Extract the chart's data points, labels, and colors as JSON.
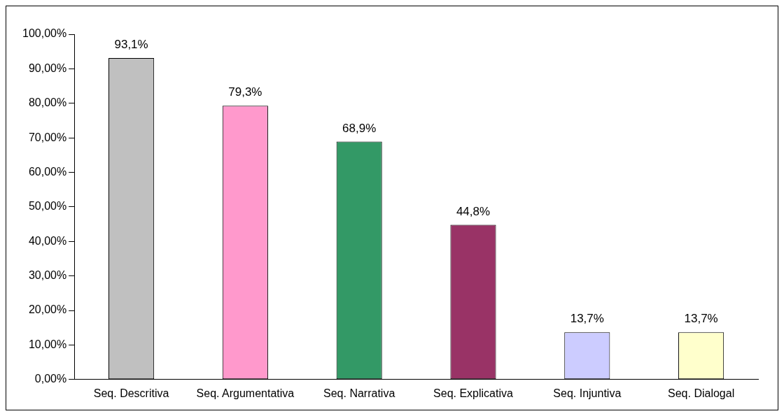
{
  "chart_data": {
    "type": "bar",
    "categories": [
      "Seq. Descritiva",
      "Seq. Argumentativa",
      "Seq. Narrativa",
      "Seq. Explicativa",
      "Seq. Injuntiva",
      "Seq. Dialogal"
    ],
    "values": [
      93.1,
      79.3,
      68.9,
      44.8,
      13.7,
      13.7
    ],
    "colors": [
      "#c0c0c0",
      "#ff99cc",
      "#339966",
      "#993366",
      "#ccccff",
      "#ffffcc"
    ],
    "value_labels": [
      "93,1%",
      "79,3%",
      "68,9%",
      "44,8%",
      "13,7%",
      "13,7%"
    ],
    "ylim": [
      0,
      100
    ],
    "yticks": [
      {
        "value": 0,
        "label": "0,00%"
      },
      {
        "value": 10,
        "label": "10,00%"
      },
      {
        "value": 20,
        "label": "20,00%"
      },
      {
        "value": 30,
        "label": "30,00%"
      },
      {
        "value": 40,
        "label": "40,00%"
      },
      {
        "value": 50,
        "label": "50,00%"
      },
      {
        "value": 60,
        "label": "60,00%"
      },
      {
        "value": 70,
        "label": "70,00%"
      },
      {
        "value": 80,
        "label": "80,00%"
      },
      {
        "value": 90,
        "label": "90,00%"
      },
      {
        "value": 100,
        "label": "100,00%"
      }
    ],
    "grid": false,
    "legend": false
  }
}
